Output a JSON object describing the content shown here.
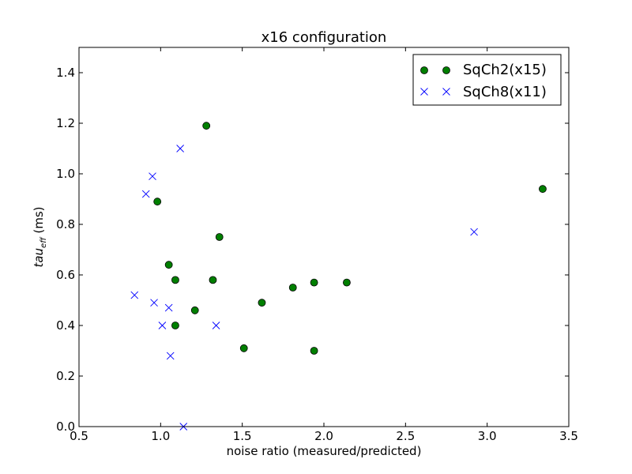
{
  "chart_data": {
    "type": "scatter",
    "title": "x16 configuration",
    "xlabel": "noise ratio (measured/predicted)",
    "ylabel_main": "tau",
    "ylabel_sub": "eff",
    "ylabel_units": "(ms)",
    "xlim": [
      0.5,
      3.5
    ],
    "ylim": [
      0.0,
      1.5
    ],
    "xticks": [
      0.5,
      1.0,
      1.5,
      2.0,
      2.5,
      3.0,
      3.5
    ],
    "xtick_labels": [
      "0.5",
      "1.0",
      "1.5",
      "2.0",
      "2.5",
      "3.0",
      "3.5"
    ],
    "yticks": [
      0.0,
      0.2,
      0.4,
      0.6,
      0.8,
      1.0,
      1.2,
      1.4
    ],
    "ytick_labels": [
      "0.0",
      "0.2",
      "0.4",
      "0.6",
      "0.8",
      "1.0",
      "1.2",
      "1.4"
    ],
    "grid": false,
    "legend_position": "top-right",
    "series": [
      {
        "name": "SqCh2(x15)",
        "marker": "circle",
        "color": "#007f00",
        "edge_color": "#000000",
        "points": [
          [
            1.28,
            1.19
          ],
          [
            0.98,
            0.89
          ],
          [
            1.36,
            0.75
          ],
          [
            1.05,
            0.64
          ],
          [
            1.09,
            0.58
          ],
          [
            1.32,
            0.58
          ],
          [
            1.21,
            0.46
          ],
          [
            1.09,
            0.4
          ],
          [
            1.51,
            0.31
          ],
          [
            1.62,
            0.49
          ],
          [
            1.81,
            0.55
          ],
          [
            1.94,
            0.57
          ],
          [
            2.14,
            0.57
          ],
          [
            1.94,
            0.3
          ],
          [
            3.34,
            0.94
          ]
        ]
      },
      {
        "name": "SqCh8(x11)",
        "marker": "x",
        "color": "#0000ff",
        "points": [
          [
            1.12,
            1.1
          ],
          [
            0.95,
            0.99
          ],
          [
            0.91,
            0.92
          ],
          [
            0.84,
            0.52
          ],
          [
            0.96,
            0.49
          ],
          [
            1.01,
            0.4
          ],
          [
            1.05,
            0.47
          ],
          [
            1.34,
            0.4
          ],
          [
            1.06,
            0.28
          ],
          [
            1.14,
            0.0
          ],
          [
            2.92,
            0.77
          ]
        ]
      }
    ]
  }
}
